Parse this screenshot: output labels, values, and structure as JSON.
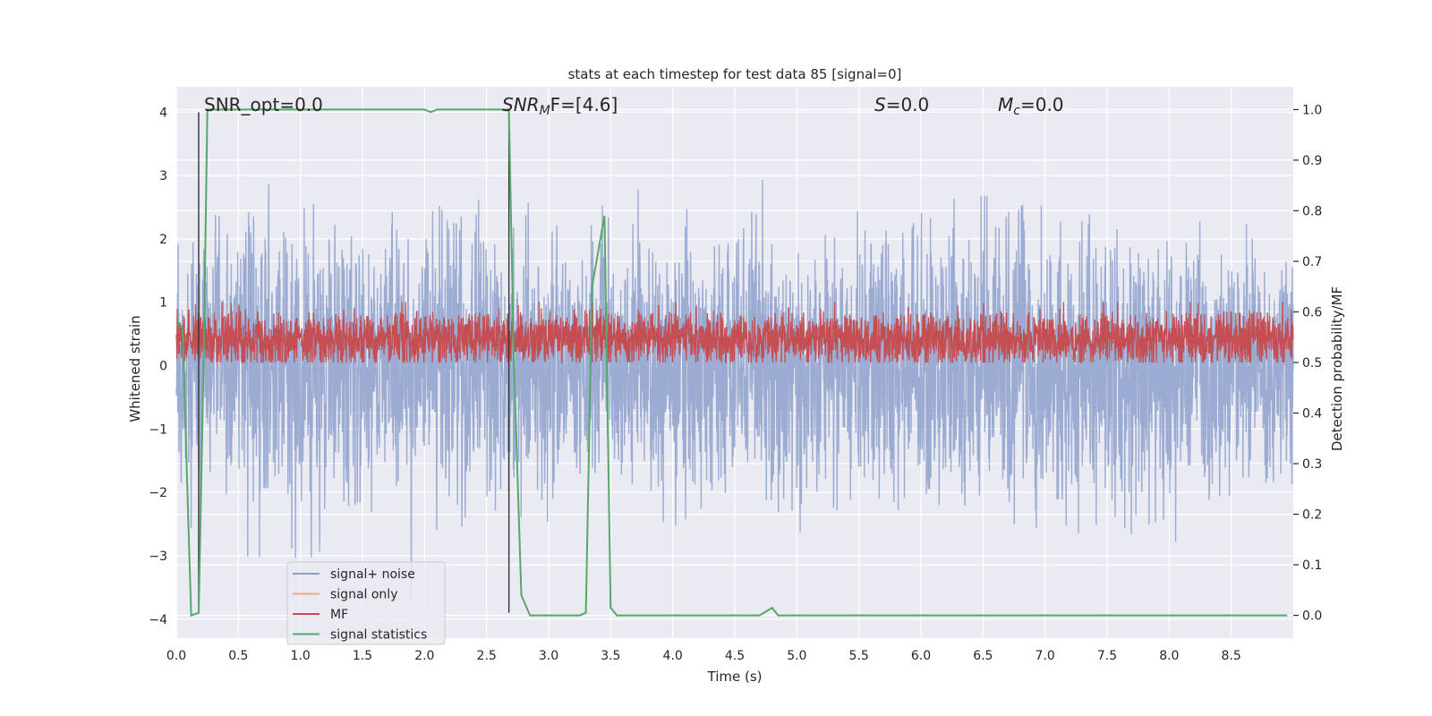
{
  "chart_data": {
    "type": "line",
    "title": "stats at each timestep for test data 85 [signal=0]",
    "xlabel": "Time (s)",
    "ylabel": "Whitened strain",
    "y2label": "Detection probability/MF",
    "xlim": [
      0.0,
      9.0
    ],
    "ylim": [
      -4.3,
      4.4
    ],
    "y2lim": [
      -0.045,
      1.045
    ],
    "xticks": [
      0.0,
      0.5,
      1.0,
      1.5,
      2.0,
      2.5,
      3.0,
      3.5,
      4.0,
      4.5,
      5.0,
      5.5,
      6.0,
      6.5,
      7.0,
      7.5,
      8.0,
      8.5
    ],
    "xtick_labels": [
      "0.0",
      "0.5",
      "1.0",
      "1.5",
      "2.0",
      "2.5",
      "3.0",
      "3.5",
      "4.0",
      "4.5",
      "5.0",
      "5.5",
      "6.0",
      "6.5",
      "7.0",
      "7.5",
      "8.0",
      "8.5"
    ],
    "yticks": [
      -4,
      -3,
      -2,
      -1,
      0,
      1,
      2,
      3,
      4
    ],
    "ytick_labels": [
      "−4",
      "−3",
      "−2",
      "−1",
      "0",
      "1",
      "2",
      "3",
      "4"
    ],
    "y2ticks": [
      0.0,
      0.1,
      0.2,
      0.3,
      0.4,
      0.5,
      0.6,
      0.7,
      0.8,
      0.9,
      1.0
    ],
    "y2tick_labels": [
      "0.0",
      "0.1",
      "0.2",
      "0.3",
      "0.4",
      "0.5",
      "0.6",
      "0.7",
      "0.8",
      "0.9",
      "1.0"
    ],
    "grid": true,
    "legend_position": "lower-left",
    "annotations": {
      "snr_opt": "SNR_opt=0.0",
      "snr_mf_main": "SNR",
      "snr_mf_sub": "M",
      "snr_mf_rest": "F=[4.6]",
      "s_label": "S",
      "s_rest": "=0.0",
      "mc_label": "M",
      "mc_sub": "c",
      "mc_rest": "=0.0"
    },
    "vertical_lines_x": [
      0.18,
      2.68
    ],
    "vertical_lines_yrange": [
      -3.9,
      4.0
    ],
    "series": [
      {
        "name": "signal+ noise",
        "color": "#8da0cb",
        "axis": "left",
        "kind": "noise",
        "x_range": [
          0.0,
          9.0
        ],
        "samples": 3600,
        "seed": 85,
        "amplitude_envelope": [
          [
            0.0,
            2.3
          ],
          [
            0.3,
            3.0
          ],
          [
            0.8,
            3.7
          ],
          [
            1.2,
            3.0
          ],
          [
            2.0,
            3.0
          ],
          [
            2.7,
            3.3
          ],
          [
            3.0,
            3.0
          ],
          [
            4.0,
            2.8
          ],
          [
            5.0,
            3.0
          ],
          [
            6.0,
            3.0
          ],
          [
            7.0,
            3.2
          ],
          [
            8.0,
            3.0
          ],
          [
            9.0,
            2.7
          ]
        ]
      },
      {
        "name": "signal only",
        "color": "#f4a582",
        "axis": "left",
        "kind": "flat",
        "value": 0.0
      },
      {
        "name": "MF",
        "color": "#c44e52",
        "axis": "right",
        "kind": "noise-positive",
        "x_range": [
          0.0,
          9.0
        ],
        "samples": 3600,
        "seed": 7,
        "baseline": 0.5,
        "mean": 0.545,
        "spread": 0.04,
        "max": 0.62
      },
      {
        "name": "signal statistics",
        "color": "#55a868",
        "axis": "right",
        "kind": "line",
        "x": [
          0.0,
          0.05,
          0.12,
          0.18,
          0.22,
          0.25,
          0.5,
          1.0,
          1.5,
          2.0,
          2.05,
          2.1,
          2.5,
          2.68,
          2.72,
          2.78,
          2.85,
          3.0,
          3.25,
          3.3,
          3.35,
          3.45,
          3.5,
          3.55,
          3.6,
          4.0,
          4.5,
          4.7,
          4.8,
          4.85,
          5.0,
          6.0,
          7.0,
          8.0,
          8.95
        ],
        "y": [
          0.58,
          0.57,
          0.0,
          0.005,
          0.5,
          1.0,
          1.0,
          1.0,
          1.0,
          1.0,
          0.995,
          1.0,
          1.0,
          1.0,
          0.5,
          0.04,
          0.0,
          0.0,
          0.0,
          0.005,
          0.65,
          0.79,
          0.015,
          0.0,
          0.0,
          0.0,
          0.0,
          0.0,
          0.015,
          0.0,
          0.0,
          0.0,
          0.0,
          0.0,
          0.0
        ]
      }
    ]
  }
}
